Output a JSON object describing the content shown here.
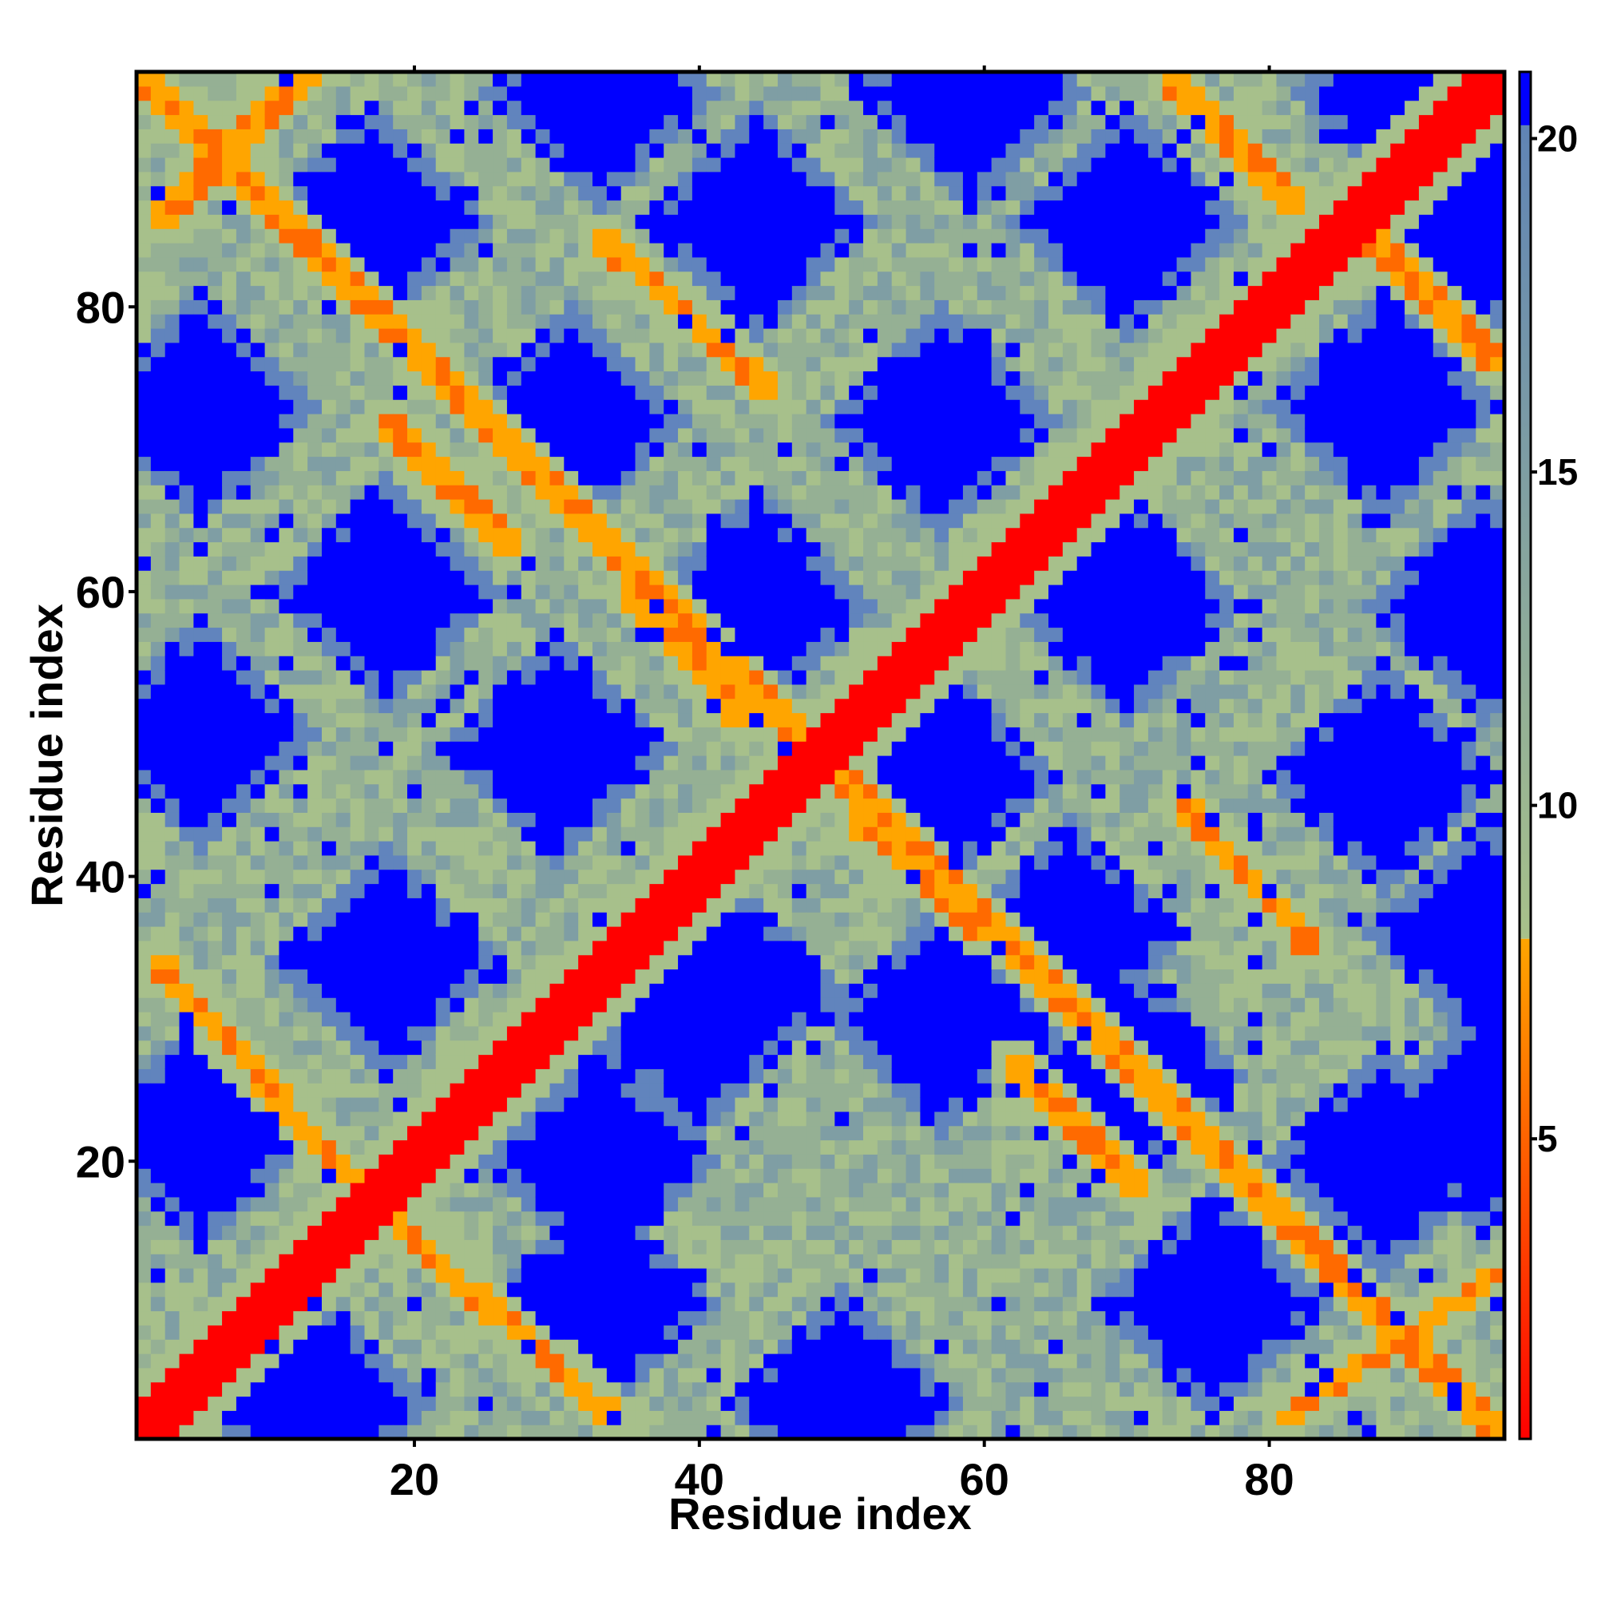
{
  "chart_data": {
    "type": "heatmap",
    "title": "",
    "xlabel": "Residue index",
    "ylabel": "Residue index",
    "n_residues": 96,
    "xlim": [
      0.5,
      96.5
    ],
    "ylim": [
      0.5,
      96.5
    ],
    "xticks": [
      20,
      40,
      60,
      80
    ],
    "yticks": [
      20,
      40,
      60,
      80
    ],
    "colorbar": {
      "range": [
        0.5,
        21
      ],
      "ticks": [
        5,
        10,
        15,
        20
      ],
      "segments": [
        {
          "from": 0.5,
          "to": 8,
          "colors": [
            "#ff0000",
            "#ffa500"
          ]
        },
        {
          "from": 8,
          "to": 21,
          "colors": [
            "#a8c18a",
            "#5b80b8"
          ]
        }
      ]
    },
    "color_scale": [
      {
        "max": 4,
        "color": "#ff0000"
      },
      {
        "max": 6,
        "color": "#ff6a00"
      },
      {
        "max": 8,
        "color": "#ffa500"
      },
      {
        "max": 11,
        "color": "#a7c08b"
      },
      {
        "max": 13.5,
        "color": "#95b094"
      },
      {
        "max": 16,
        "color": "#7f9ea4"
      },
      {
        "max": 19,
        "color": "#6184bd"
      },
      {
        "max": 999,
        "color": "#0000ff"
      }
    ],
    "diagonal_band": {
      "description": "main diagonal: distance below 4 for |i-j| <= 2"
    },
    "contact_features": [
      {
        "name": "anti-diagonal",
        "i_range": [
          1,
          96
        ],
        "line": "i + j = 97",
        "value": 6.5
      },
      {
        "name": "ridge",
        "from": [
          16,
          18
        ],
        "to": [
          34,
          2
        ],
        "value": 6.5
      },
      {
        "name": "ridge",
        "from": [
          18,
          16
        ],
        "to": [
          2,
          34
        ],
        "value": 6.5
      },
      {
        "name": "ridge",
        "from": [
          62,
          27
        ],
        "to": [
          71,
          18
        ],
        "value": 6.5
      },
      {
        "name": "ridge",
        "from": [
          74,
          45
        ],
        "to": [
          83,
          35
        ],
        "value": 6.5
      },
      {
        "name": "ridge",
        "from": [
          51,
          44
        ],
        "to": [
          60,
          36
        ],
        "value": 6.5
      },
      {
        "name": "ridge",
        "from": [
          35,
          60
        ],
        "to": [
          43,
          51
        ],
        "value": 6.5
      },
      {
        "name": "ridge",
        "from": [
          18,
          72
        ],
        "to": [
          27,
          63
        ],
        "value": 6.5
      },
      {
        "name": "ridge",
        "from": [
          33,
          85
        ],
        "to": [
          45,
          74
        ],
        "value": 6.5
      },
      {
        "name": "ridge",
        "from": [
          73,
          96
        ],
        "to": [
          82,
          87
        ],
        "value": 6.5
      },
      {
        "name": "ridge",
        "from": [
          85,
          87
        ],
        "to": [
          96,
          76
        ],
        "value": 6.5
      },
      {
        "name": "ridge",
        "from": [
          2,
          86
        ],
        "to": [
          13,
          97
        ],
        "value": 6.5
      },
      {
        "name": "ridge",
        "from": [
          81,
          2
        ],
        "to": [
          96,
          12
        ],
        "value": 6.5
      }
    ],
    "far_regions": [
      {
        "center": [
          13,
          3
        ],
        "value": 21
      },
      {
        "center": [
          33,
          10
        ],
        "value": 21
      },
      {
        "center": [
          50,
          3
        ],
        "value": 21
      },
      {
        "center": [
          57,
          30
        ],
        "value": 21
      },
      {
        "center": [
          76,
          10
        ],
        "value": 21
      },
      {
        "center": [
          95,
          23
        ],
        "value": 21
      },
      {
        "center": [
          5,
          22
        ],
        "value": 21
      },
      {
        "center": [
          33,
          20
        ],
        "value": 21
      },
      {
        "center": [
          40,
          30
        ],
        "value": 21
      },
      {
        "center": [
          70,
          26
        ],
        "value": 21
      },
      {
        "center": [
          88,
          20
        ],
        "value": 21
      },
      {
        "center": [
          18,
          34
        ],
        "value": 21
      },
      {
        "center": [
          42,
          32
        ],
        "value": 21
      },
      {
        "center": [
          66,
          36
        ],
        "value": 21
      },
      {
        "center": [
          95,
          36
        ],
        "value": 21
      },
      {
        "center": [
          5,
          50
        ],
        "value": 21
      },
      {
        "center": [
          30,
          49
        ],
        "value": 21
      },
      {
        "center": [
          57,
          47
        ],
        "value": 21
      },
      {
        "center": [
          88,
          47
        ],
        "value": 21
      },
      {
        "center": [
          18,
          60
        ],
        "value": 21
      },
      {
        "center": [
          44,
          59
        ],
        "value": 21
      },
      {
        "center": [
          70,
          59
        ],
        "value": 21
      },
      {
        "center": [
          95,
          59
        ],
        "value": 21
      },
      {
        "center": [
          5,
          73
        ],
        "value": 21
      },
      {
        "center": [
          31,
          72
        ],
        "value": 21
      },
      {
        "center": [
          57,
          72
        ],
        "value": 21
      },
      {
        "center": [
          88,
          73
        ],
        "value": 21
      },
      {
        "center": [
          17,
          86
        ],
        "value": 21
      },
      {
        "center": [
          44,
          86
        ],
        "value": 21
      },
      {
        "center": [
          70,
          86
        ],
        "value": 21
      },
      {
        "center": [
          95,
          86
        ],
        "value": 21
      },
      {
        "center": [
          33,
          95
        ],
        "value": 21
      },
      {
        "center": [
          59,
          95
        ],
        "value": 21
      },
      {
        "center": [
          90,
          95
        ],
        "value": 21
      }
    ],
    "background_value": 12
  }
}
